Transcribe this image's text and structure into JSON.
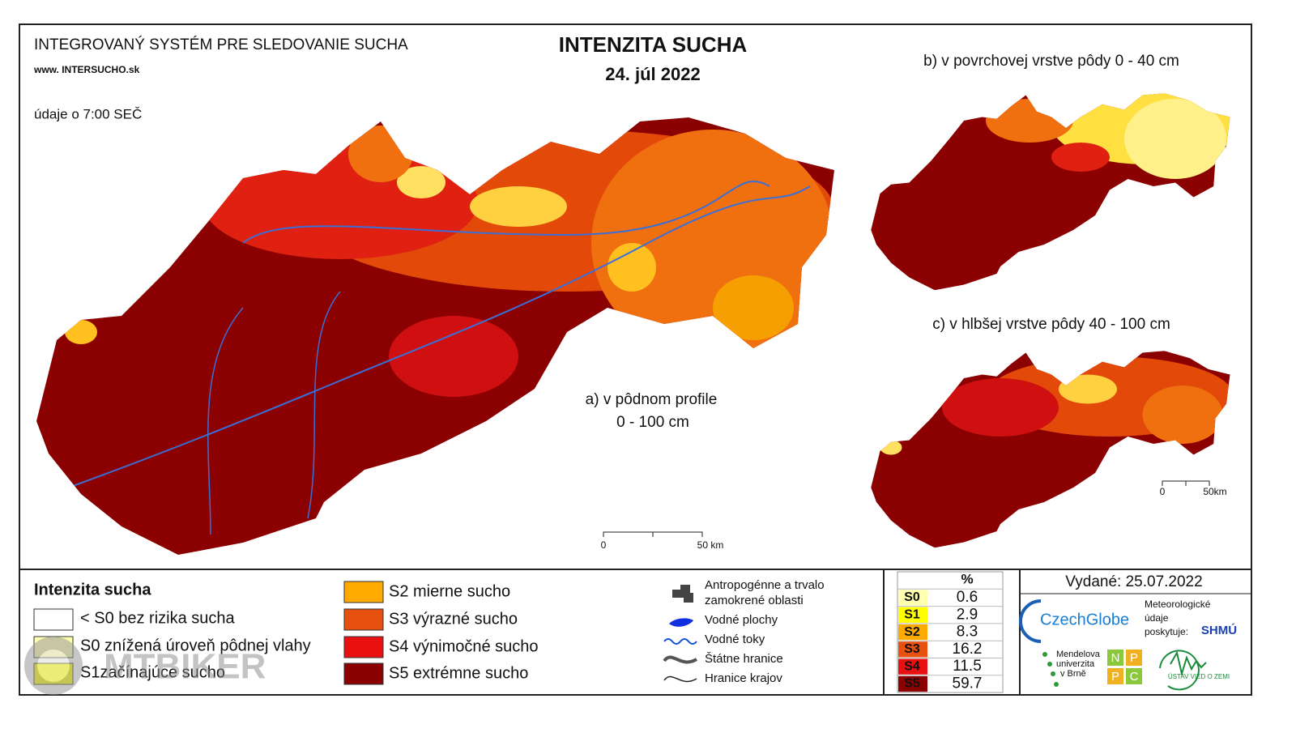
{
  "header": {
    "system_title": "INTEGROVANÝ SYSTÉM PRE SLEDOVANIE SUCHA",
    "website": "www. INTERSUCHO.sk",
    "data_time": "údaje o 7:00 SEČ",
    "title": "INTENZITA SUCHA",
    "date": "24. júl 2022"
  },
  "maps": {
    "a_label": "a) v pôdnom profile",
    "a_depth": "0 - 100 cm",
    "b_label": "b) v povrchovej vrstve pôdy 0 - 40 cm",
    "c_label": "c) v hlbšej vrstve pôdy 40 - 100 cm",
    "a_scale": [
      "0",
      "50 km"
    ],
    "c_scale": [
      "0",
      "50km"
    ]
  },
  "legend": {
    "title": "Intenzita sucha",
    "items": [
      "< S0 bez rizika sucha",
      "S0 znížená úroveň pôdnej vlahy",
      "S1začínajúce sucho",
      "S2 mierne sucho",
      "S3 výrazné sucho",
      "S4 výnimočné sucho",
      "S5 extrémne sucho"
    ]
  },
  "symbols": [
    "Antropogénne a trvalo",
    "zamokrené oblasti",
    "Vodné plochy",
    "Vodné toky",
    "Štátne hranice",
    "Hranice krajov"
  ],
  "table": {
    "header": "%",
    "rows": [
      [
        "S0",
        0.6
      ],
      [
        "S1",
        2.9
      ],
      [
        "S2",
        8.3
      ],
      [
        "S3",
        16.2
      ],
      [
        "S4",
        11.5
      ],
      [
        "S5",
        59.7
      ]
    ]
  },
  "issued": "Vydané: 25.07.2022",
  "logos": {
    "czechglobe": "CzechGlobe",
    "meteo": [
      "Meteorologické",
      "údaje",
      "poskytuje:"
    ],
    "shmu": "SHMÚ",
    "mendel": [
      "Mendelova",
      "univerzita",
      "v Brně"
    ],
    "nppc": [
      "N",
      "P",
      "P",
      "C"
    ],
    "uvz": "ÚSTAV VIED O ZEMI"
  },
  "watermark": "MTBIKER"
}
